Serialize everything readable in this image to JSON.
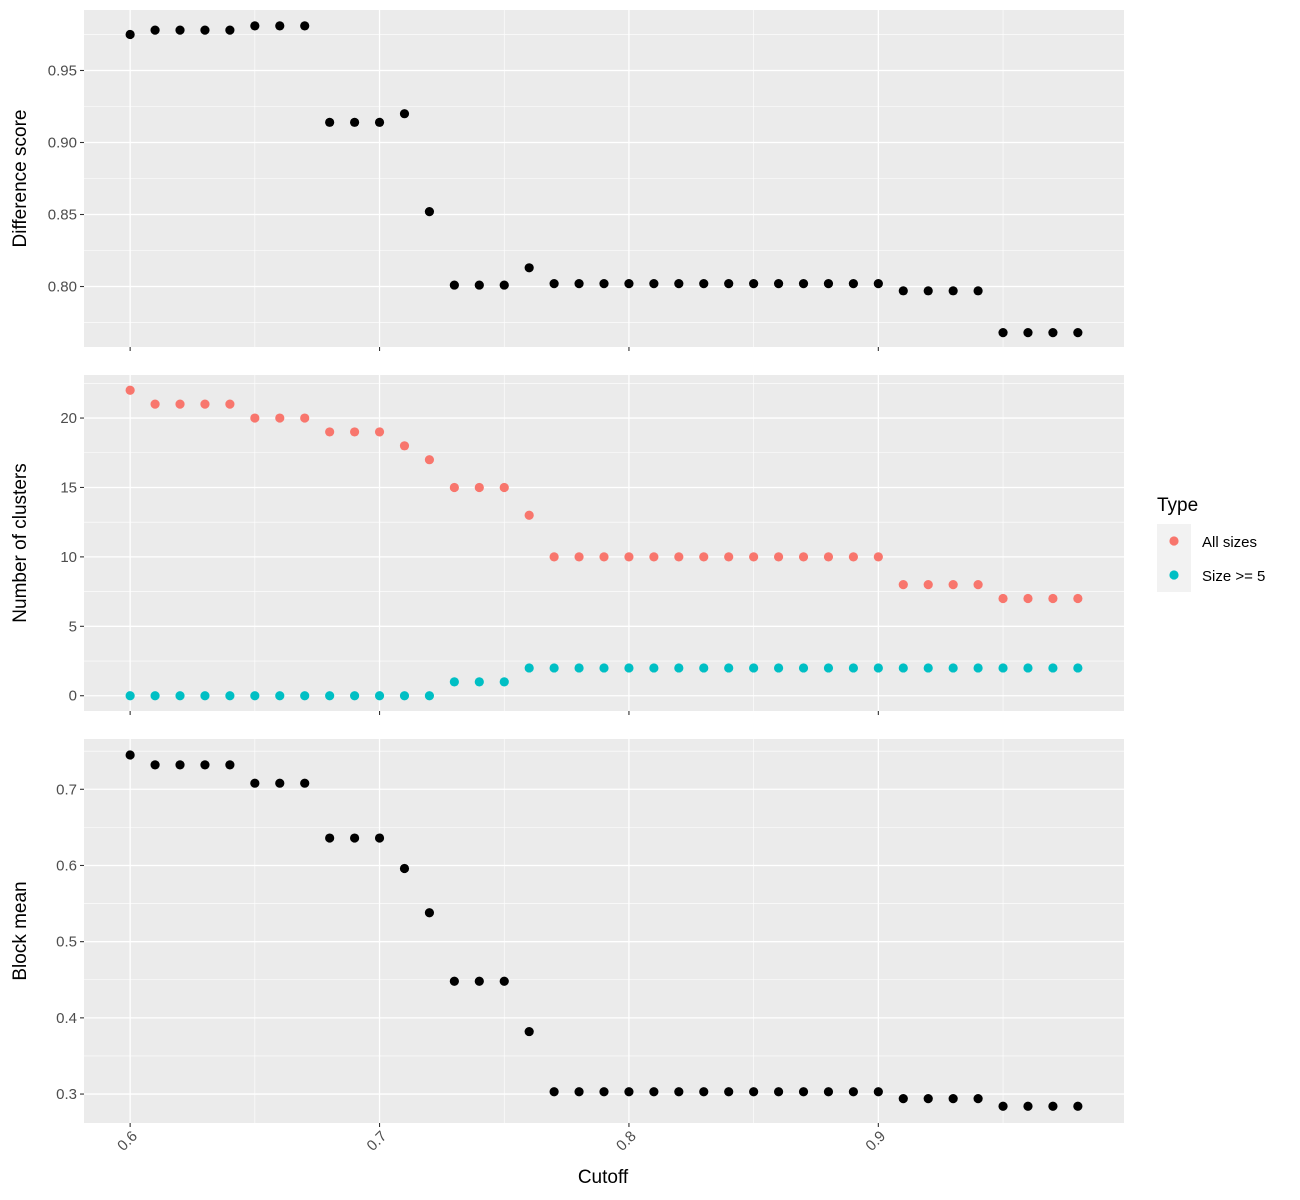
{
  "chart_data": [
    {
      "type": "scatter",
      "ylabel": "Difference score",
      "ylim": [
        0.758,
        0.992
      ],
      "yticks": [
        0.8,
        0.85,
        0.9,
        0.95
      ],
      "ytick_labels": [
        "0.80",
        "0.85",
        "0.90",
        "0.95"
      ],
      "series": [
        {
          "color": "#000000",
          "x": [
            0.6,
            0.61,
            0.62,
            0.63,
            0.64,
            0.65,
            0.66,
            0.67,
            0.68,
            0.69,
            0.7,
            0.71,
            0.72,
            0.73,
            0.74,
            0.75,
            0.76,
            0.77,
            0.78,
            0.79,
            0.8,
            0.81,
            0.82,
            0.83,
            0.84,
            0.85,
            0.86,
            0.87,
            0.88,
            0.89,
            0.9,
            0.91,
            0.92,
            0.93,
            0.94,
            0.95,
            0.96,
            0.97,
            0.98
          ],
          "y": [
            0.975,
            0.978,
            0.978,
            0.978,
            0.978,
            0.981,
            0.981,
            0.981,
            0.914,
            0.914,
            0.914,
            0.92,
            0.852,
            0.801,
            0.801,
            0.801,
            0.813,
            0.802,
            0.802,
            0.802,
            0.802,
            0.802,
            0.802,
            0.802,
            0.802,
            0.802,
            0.802,
            0.802,
            0.802,
            0.802,
            0.802,
            0.797,
            0.797,
            0.797,
            0.797,
            0.768,
            0.768,
            0.768,
            0.768
          ]
        }
      ]
    },
    {
      "type": "scatter",
      "ylabel": "Number of clusters",
      "ylim": [
        -1.1,
        23.1
      ],
      "yticks": [
        0,
        5,
        10,
        15,
        20
      ],
      "ytick_labels": [
        "0",
        "5",
        "10",
        "15",
        "20"
      ],
      "legend": {
        "title": "Type",
        "position": "right"
      },
      "series": [
        {
          "name": "All sizes",
          "color": "#F8766D",
          "x": [
            0.6,
            0.61,
            0.62,
            0.63,
            0.64,
            0.65,
            0.66,
            0.67,
            0.68,
            0.69,
            0.7,
            0.71,
            0.72,
            0.73,
            0.74,
            0.75,
            0.76,
            0.77,
            0.78,
            0.79,
            0.8,
            0.81,
            0.82,
            0.83,
            0.84,
            0.85,
            0.86,
            0.87,
            0.88,
            0.89,
            0.9,
            0.91,
            0.92,
            0.93,
            0.94,
            0.95,
            0.96,
            0.97,
            0.98
          ],
          "y": [
            22,
            21,
            21,
            21,
            21,
            20,
            20,
            20,
            19,
            19,
            19,
            18,
            17,
            15,
            15,
            15,
            13,
            10,
            10,
            10,
            10,
            10,
            10,
            10,
            10,
            10,
            10,
            10,
            10,
            10,
            10,
            8,
            8,
            8,
            8,
            7,
            7,
            7,
            7
          ]
        },
        {
          "name": "Size >= 5",
          "color": "#00BFC4",
          "x": [
            0.6,
            0.61,
            0.62,
            0.63,
            0.64,
            0.65,
            0.66,
            0.67,
            0.68,
            0.69,
            0.7,
            0.71,
            0.72,
            0.73,
            0.74,
            0.75,
            0.76,
            0.77,
            0.78,
            0.79,
            0.8,
            0.81,
            0.82,
            0.83,
            0.84,
            0.85,
            0.86,
            0.87,
            0.88,
            0.89,
            0.9,
            0.91,
            0.92,
            0.93,
            0.94,
            0.95,
            0.96,
            0.97,
            0.98
          ],
          "y": [
            0,
            0,
            0,
            0,
            0,
            0,
            0,
            0,
            0,
            0,
            0,
            0,
            0,
            1,
            1,
            1,
            2,
            2,
            2,
            2,
            2,
            2,
            2,
            2,
            2,
            2,
            2,
            2,
            2,
            2,
            2,
            2,
            2,
            2,
            2,
            2,
            2,
            2,
            2
          ]
        }
      ]
    },
    {
      "type": "scatter",
      "ylabel": "Block mean",
      "xlabel": "Cutoff",
      "ylim": [
        0.262,
        0.766
      ],
      "yticks": [
        0.3,
        0.4,
        0.5,
        0.6,
        0.7
      ],
      "ytick_labels": [
        "0.3",
        "0.4",
        "0.5",
        "0.6",
        "0.7"
      ],
      "series": [
        {
          "color": "#000000",
          "x": [
            0.6,
            0.61,
            0.62,
            0.63,
            0.64,
            0.65,
            0.66,
            0.67,
            0.68,
            0.69,
            0.7,
            0.71,
            0.72,
            0.73,
            0.74,
            0.75,
            0.76,
            0.77,
            0.78,
            0.79,
            0.8,
            0.81,
            0.82,
            0.83,
            0.84,
            0.85,
            0.86,
            0.87,
            0.88,
            0.89,
            0.9,
            0.91,
            0.92,
            0.93,
            0.94,
            0.95,
            0.96,
            0.97,
            0.98
          ],
          "y": [
            0.745,
            0.732,
            0.732,
            0.732,
            0.732,
            0.708,
            0.708,
            0.708,
            0.636,
            0.636,
            0.636,
            0.596,
            0.538,
            0.448,
            0.448,
            0.448,
            0.382,
            0.303,
            0.303,
            0.303,
            0.303,
            0.303,
            0.303,
            0.303,
            0.303,
            0.303,
            0.303,
            0.303,
            0.303,
            0.303,
            0.303,
            0.294,
            0.294,
            0.294,
            0.294,
            0.284,
            0.284,
            0.284,
            0.284
          ]
        }
      ]
    }
  ],
  "x_axis": {
    "label": "Cutoff",
    "xlim": [
      0.5815,
      0.9985
    ],
    "ticks": [
      0.6,
      0.7,
      0.8,
      0.9
    ],
    "tick_labels": [
      "0.6",
      "0.7",
      "0.8",
      "0.9"
    ]
  },
  "legend": {
    "title": "Type",
    "items": [
      {
        "label": "All sizes",
        "color": "#F8766D"
      },
      {
        "label": "Size >= 5",
        "color": "#00BFC4"
      }
    ]
  },
  "colors": {
    "panel_background": "#EBEBEB",
    "grid": "#FFFFFF",
    "point_default": "#000000"
  }
}
